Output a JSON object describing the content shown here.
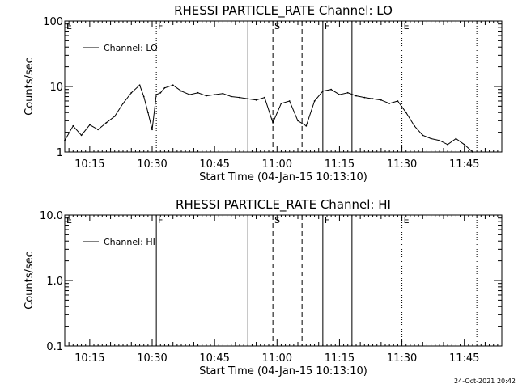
{
  "footer_timestamp": "24-Oct-2021 20:42",
  "chart_data": [
    {
      "type": "line",
      "title": "RHESSI PARTICLE_RATE Channel: LO",
      "xlabel": "Start Time (04-Jan-15 10:13:10)",
      "ylabel": "Counts/sec",
      "yscale": "log",
      "ylim": [
        1,
        100
      ],
      "xlim": [
        "10:09",
        "11:54"
      ],
      "x_ticks": [
        "10:15",
        "10:30",
        "10:45",
        "11:00",
        "11:15",
        "11:30",
        "11:45"
      ],
      "y_ticks": [
        "1",
        "10",
        "100"
      ],
      "legend_label": "Channel: LO",
      "legend": "top-left",
      "grid": false,
      "markers": [
        {
          "label": "E",
          "time": "10:09",
          "style": "dotted"
        },
        {
          "label": "F",
          "time": "10:31",
          "style": "dotted"
        },
        {
          "label": "",
          "time": "10:53",
          "style": "solid"
        },
        {
          "label": "S",
          "time": "10:59",
          "style": "dashed"
        },
        {
          "label": "",
          "time": "11:06",
          "style": "dashed"
        },
        {
          "label": "F",
          "time": "11:11",
          "style": "solid"
        },
        {
          "label": "",
          "time": "11:18",
          "style": "solid"
        },
        {
          "label": "E",
          "time": "11:30",
          "style": "dotted"
        },
        {
          "label": "",
          "time": "11:48",
          "style": "dotted"
        }
      ],
      "series": [
        {
          "x": [
            "10:09",
            "10:11",
            "10:13",
            "10:15",
            "10:17",
            "10:19",
            "10:21",
            "10:23",
            "10:25",
            "10:27",
            "10:28",
            "10:29",
            "10:30",
            "10:31",
            "10:32",
            "10:33",
            "10:35",
            "10:37",
            "10:39",
            "10:41",
            "10:43",
            "10:45",
            "10:47",
            "10:49",
            "10:51",
            "10:53",
            "10:55",
            "10:57",
            "10:59",
            "11:01",
            "11:03",
            "11:05",
            "11:07",
            "11:09",
            "11:11",
            "11:13",
            "11:15",
            "11:17",
            "11:19",
            "11:21",
            "11:23",
            "11:25",
            "11:27",
            "11:29",
            "11:31",
            "11:33",
            "11:35",
            "11:37",
            "11:39",
            "11:41",
            "11:43",
            "11:45",
            "11:47"
          ],
          "values": [
            1.5,
            2.5,
            1.8,
            2.6,
            2.2,
            2.8,
            3.5,
            5.5,
            8.0,
            10.5,
            7.0,
            4.0,
            2.2,
            7.5,
            8.0,
            9.5,
            10.5,
            8.5,
            7.5,
            8.0,
            7.2,
            7.5,
            7.8,
            7.0,
            6.8,
            6.5,
            6.2,
            6.8,
            2.8,
            5.5,
            6.0,
            3.0,
            2.5,
            6.0,
            8.5,
            9.0,
            7.5,
            8.0,
            7.2,
            6.8,
            6.5,
            6.2,
            5.5,
            6.0,
            4.0,
            2.5,
            1.8,
            1.6,
            1.5,
            1.3,
            1.6,
            1.3,
            1.0
          ]
        }
      ]
    },
    {
      "type": "line",
      "title": "RHESSI PARTICLE_RATE Channel: HI",
      "xlabel": "Start Time (04-Jan-15 10:13:10)",
      "ylabel": "Counts/sec",
      "yscale": "log",
      "ylim": [
        0.1,
        10
      ],
      "xlim": [
        "10:09",
        "11:54"
      ],
      "x_ticks": [
        "10:15",
        "10:30",
        "10:45",
        "11:00",
        "11:15",
        "11:30",
        "11:45"
      ],
      "y_ticks": [
        "0.1",
        "1.0",
        "10.0"
      ],
      "legend_label": "Channel: HI",
      "legend": "top-left",
      "grid": false,
      "markers": [
        {
          "label": "E",
          "time": "10:09",
          "style": "dotted"
        },
        {
          "label": "F",
          "time": "10:31",
          "style": "solid"
        },
        {
          "label": "",
          "time": "10:53",
          "style": "solid"
        },
        {
          "label": "S",
          "time": "10:59",
          "style": "dashed"
        },
        {
          "label": "",
          "time": "11:06",
          "style": "dashed"
        },
        {
          "label": "F",
          "time": "11:11",
          "style": "solid"
        },
        {
          "label": "",
          "time": "11:18",
          "style": "solid"
        },
        {
          "label": "E",
          "time": "11:30",
          "style": "dotted"
        },
        {
          "label": "",
          "time": "11:48",
          "style": "dotted"
        }
      ],
      "series": [
        {
          "x": [],
          "values": []
        }
      ]
    }
  ]
}
